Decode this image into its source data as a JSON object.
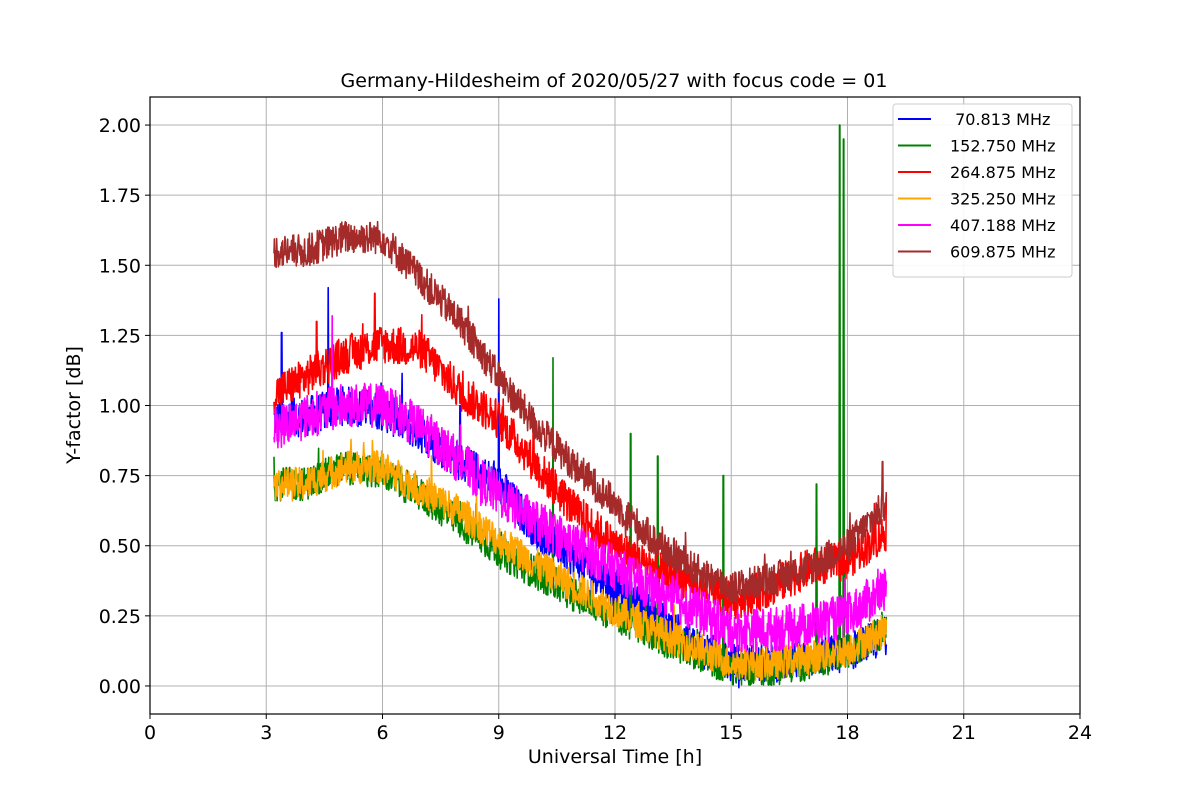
{
  "chart_data": {
    "type": "line",
    "title": "Germany-Hildesheim of 2020/05/27 with focus code = 01",
    "xlabel": "Universal Time [h]",
    "ylabel": "Y-factor [dB]",
    "xlim": [
      0,
      24
    ],
    "ylim": [
      -0.1,
      2.1
    ],
    "x_ticks": [
      0,
      3,
      6,
      9,
      12,
      15,
      18,
      21,
      24
    ],
    "x_tick_labels": [
      "0",
      "3",
      "6",
      "9",
      "12",
      "15",
      "18",
      "21",
      "24"
    ],
    "y_ticks": [
      0.0,
      0.25,
      0.5,
      0.75,
      1.0,
      1.25,
      1.5,
      1.75,
      2.0
    ],
    "y_tick_labels": [
      "0.00",
      "0.25",
      "0.50",
      "0.75",
      "1.00",
      "1.25",
      "1.50",
      "1.75",
      "2.00"
    ],
    "grid": true,
    "legend_position": "top-right",
    "series": [
      {
        "name": " 70.813 MHz",
        "color": "#0000ff",
        "x": [
          3.2,
          4,
          5,
          6,
          7,
          8,
          9,
          10,
          11,
          12,
          13,
          14,
          15,
          16,
          17,
          18,
          19
        ],
        "y": [
          0.95,
          0.96,
          1.0,
          0.98,
          0.9,
          0.8,
          0.72,
          0.55,
          0.45,
          0.35,
          0.25,
          0.15,
          0.08,
          0.08,
          0.1,
          0.12,
          0.18
        ],
        "noise": 0.07,
        "spikes": [
          [
            3.4,
            1.26
          ],
          [
            4.6,
            1.42
          ],
          [
            8.0,
            1.0
          ],
          [
            9.0,
            1.38
          ]
        ]
      },
      {
        "name": "152.750 MHz",
        "color": "#008000",
        "x": [
          3.2,
          4,
          5,
          6,
          7,
          8,
          9,
          10,
          11,
          12,
          13,
          14,
          15,
          16,
          17,
          18,
          19
        ],
        "y": [
          0.72,
          0.72,
          0.78,
          0.76,
          0.68,
          0.58,
          0.48,
          0.4,
          0.32,
          0.25,
          0.18,
          0.12,
          0.06,
          0.06,
          0.08,
          0.12,
          0.2
        ],
        "noise": 0.06,
        "spikes": [
          [
            10.4,
            1.17
          ],
          [
            12.4,
            0.9
          ],
          [
            13.1,
            0.82
          ],
          [
            14.8,
            0.75
          ],
          [
            17.2,
            0.72
          ],
          [
            17.8,
            2.0
          ],
          [
            17.9,
            1.95
          ]
        ]
      },
      {
        "name": "264.875 MHz",
        "color": "#ff0000",
        "x": [
          3.2,
          4,
          5,
          6,
          7,
          8,
          9,
          10,
          11,
          12,
          13,
          14,
          15,
          16,
          17,
          18,
          19
        ],
        "y": [
          1.04,
          1.1,
          1.18,
          1.22,
          1.2,
          1.05,
          0.95,
          0.78,
          0.62,
          0.5,
          0.42,
          0.36,
          0.3,
          0.35,
          0.42,
          0.45,
          0.55
        ],
        "noise": 0.07,
        "spikes": [
          [
            4.3,
            1.3
          ],
          [
            5.8,
            1.4
          ],
          [
            9.9,
            0.95
          ]
        ]
      },
      {
        "name": "325.250 MHz",
        "color": "#ffa500",
        "x": [
          3.2,
          4,
          5,
          6,
          7,
          8,
          9,
          10,
          11,
          12,
          13,
          14,
          15,
          16,
          17,
          18,
          19
        ],
        "y": [
          0.72,
          0.72,
          0.78,
          0.78,
          0.7,
          0.62,
          0.52,
          0.43,
          0.35,
          0.27,
          0.2,
          0.14,
          0.08,
          0.08,
          0.1,
          0.13,
          0.2
        ],
        "noise": 0.06,
        "spikes": []
      },
      {
        "name": "407.188 MHz",
        "color": "#ff00ff",
        "x": [
          3.2,
          4,
          5,
          6,
          7,
          8,
          9,
          10,
          11,
          12,
          13,
          14,
          15,
          16,
          17,
          18,
          19
        ],
        "y": [
          0.92,
          0.96,
          1.0,
          1.0,
          0.92,
          0.8,
          0.68,
          0.58,
          0.5,
          0.42,
          0.34,
          0.28,
          0.2,
          0.2,
          0.22,
          0.25,
          0.35
        ],
        "noise": 0.08,
        "spikes": [
          [
            4.7,
            1.32
          ]
        ]
      },
      {
        "name": "609.875 MHz",
        "color": "#a52a2a",
        "x": [
          3.2,
          4,
          5,
          6,
          7,
          8,
          9,
          10,
          11,
          12,
          13,
          14,
          15,
          16,
          17,
          18,
          19
        ],
        "y": [
          1.55,
          1.55,
          1.6,
          1.6,
          1.45,
          1.3,
          1.1,
          0.92,
          0.78,
          0.65,
          0.52,
          0.42,
          0.35,
          0.38,
          0.42,
          0.5,
          0.65
        ],
        "noise": 0.06,
        "spikes": [
          [
            18.9,
            0.8
          ]
        ]
      }
    ]
  },
  "colors": {
    "axes_edge": "#000000",
    "grid": "#b0b0b0",
    "legend_border": "#cccccc",
    "background": "#ffffff"
  }
}
